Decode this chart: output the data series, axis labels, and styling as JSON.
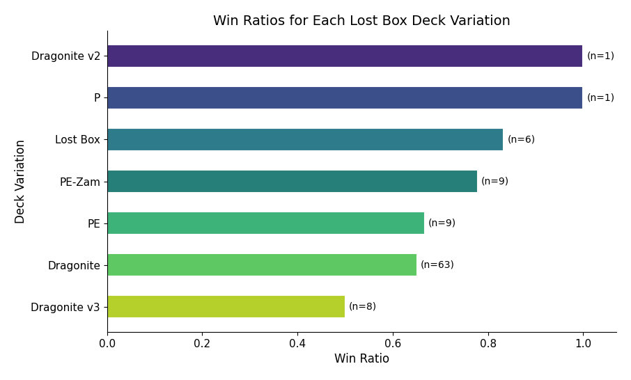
{
  "categories": [
    "Dragonite v2",
    "P",
    "Lost Box",
    "PE-Zam",
    "PE",
    "Dragonite",
    "Dragonite v3"
  ],
  "values": [
    1.0,
    1.0,
    0.833,
    0.778,
    0.667,
    0.651,
    0.5
  ],
  "sample_sizes": [
    1,
    1,
    6,
    9,
    9,
    63,
    8
  ],
  "bar_colors": [
    "#472d7b",
    "#3b4f8a",
    "#2e7b8c",
    "#277f79",
    "#3db37a",
    "#5ec962",
    "#b5cf2b"
  ],
  "title": "Win Ratios for Each Lost Box Deck Variation",
  "xlabel": "Win Ratio",
  "ylabel": "Deck Variation",
  "xlim": [
    0.0,
    1.05
  ],
  "background_color": "#ffffff",
  "title_fontsize": 14,
  "label_fontsize": 12,
  "tick_fontsize": 11,
  "annot_fontsize": 10,
  "bar_height": 0.55
}
